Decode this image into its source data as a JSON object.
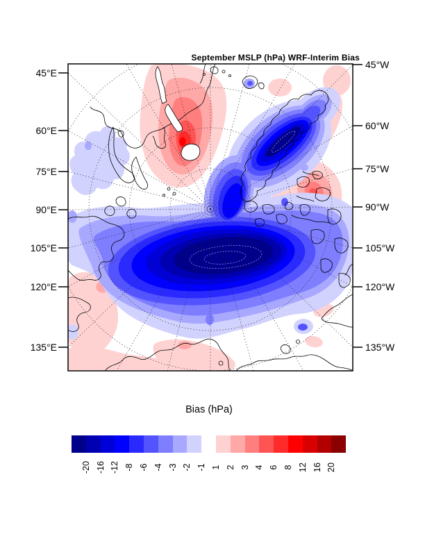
{
  "title": "September MSLP (hPa) WRF-Interim Bias",
  "map": {
    "left_axis_labels": [
      "45°E",
      "60°E",
      "75°E",
      "90°E",
      "105°E",
      "120°E",
      "135°E"
    ],
    "right_axis_labels": [
      "45°W",
      "60°W",
      "75°W",
      "90°W",
      "105°W",
      "120°W",
      "135°W"
    ]
  },
  "colorbar": {
    "title": "Bias (hPa)",
    "tick_labels": [
      "-20",
      "-16",
      "-12",
      "-8",
      "-6",
      "-4",
      "-3",
      "-2",
      "-1",
      "1",
      "2",
      "3",
      "4",
      "6",
      "8",
      "12",
      "16",
      "20"
    ],
    "cell_colors": [
      "#00008B",
      "#0000B2",
      "#0000D8",
      "#0000FF",
      "#2A2AFF",
      "#5454FF",
      "#7E7EFF",
      "#A8A8FF",
      "#D2D2FF",
      "#FFFFFF",
      "#FFD2D2",
      "#FFA8A8",
      "#FF7E7E",
      "#FF5454",
      "#FF2A2A",
      "#FF0000",
      "#D80000",
      "#B20000",
      "#8B0000"
    ]
  },
  "chart_data": {
    "type": "heatmap",
    "subtype": "filled-contour polar stereographic map (Arctic)",
    "title": "September MSLP (hPa) WRF-Interim Bias",
    "colorbar_title": "Bias (hPa)",
    "units": "hPa",
    "contour_levels": [
      -20,
      -16,
      -12,
      -8,
      -6,
      -4,
      -3,
      -2,
      -1,
      1,
      2,
      3,
      4,
      6,
      8,
      12,
      16,
      20
    ],
    "palette": [
      "#00008B",
      "#0000B2",
      "#0000D8",
      "#0000FF",
      "#2A2AFF",
      "#5454FF",
      "#7E7EFF",
      "#A8A8FF",
      "#D2D2FF",
      "#FFFFFF",
      "#FFD2D2",
      "#FFA8A8",
      "#FF7E7E",
      "#FF5454",
      "#FF2A2A",
      "#FF0000",
      "#D80000",
      "#B20000",
      "#8B0000"
    ],
    "left_meridian_ticks": [
      "45°E",
      "60°E",
      "75°E",
      "90°E",
      "105°E",
      "120°E",
      "135°E"
    ],
    "right_meridian_ticks": [
      "45°W",
      "60°W",
      "75°W",
      "90°W",
      "105°W",
      "120°W",
      "135°W"
    ],
    "graticule": "dotted meridians every 15° radiating from pole, dotted latitude circles",
    "features": [
      {
        "name": "central-arctic-negative-bias",
        "sign": "negative",
        "peak_value_hPa": -20,
        "note": "large elongated minimum < -20 hPa over central Arctic Ocean / East Siberian sector (center-bottom of map)"
      },
      {
        "name": "greenland-sea-negative-bias",
        "sign": "negative",
        "peak_value_hPa": -20,
        "note": "elongated minimum < -20 hPa over Greenland / Greenland Sea (upper right), merging with central minimum"
      },
      {
        "name": "barents-scandinavia-positive-bias",
        "sign": "positive",
        "peak_value_hPa": 6,
        "note": "maximum ~ +4 to +6 hPa over Barents Sea / Scandinavia with small core near Iceland (upper left-center)"
      },
      {
        "name": "baffin-positive-bias",
        "sign": "positive",
        "peak_value_hPa": 4,
        "note": "secondary maximum ~ +3 to +4 hPa over Baffin Bay / Canadian Archipelago (right-center)"
      },
      {
        "name": "weak-positive-patches",
        "sign": "positive",
        "peak_value_hPa": 2,
        "note": "weak +1 to +2 hPa patches over Siberia (bottom-left), Bering/Alaska coast (bottom) and scattered spots"
      }
    ]
  }
}
